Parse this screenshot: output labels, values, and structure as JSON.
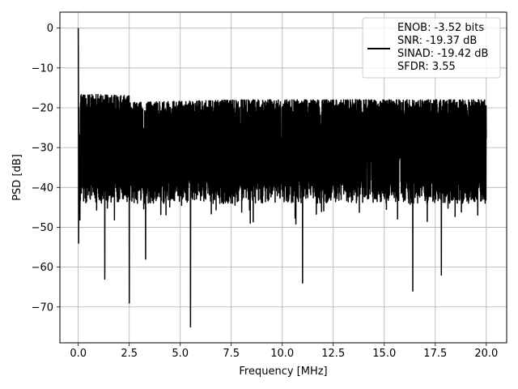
{
  "chart_data": {
    "type": "line",
    "xlabel": "Frequency [MHz]",
    "ylabel": "PSD [dB]",
    "xlim": [
      -0.9,
      21.0
    ],
    "ylim": [
      -79,
      4
    ],
    "xticks": [
      0.0,
      2.5,
      5.0,
      7.5,
      10.0,
      12.5,
      15.0,
      17.5,
      20.0
    ],
    "xtick_labels": [
      "0.0",
      "2.5",
      "5.0",
      "7.5",
      "10.0",
      "12.5",
      "15.0",
      "17.5",
      "20.0"
    ],
    "yticks": [
      0,
      -10,
      -20,
      -30,
      -40,
      -50,
      -60,
      -70
    ],
    "ytick_labels": [
      "0",
      "−10",
      "−20",
      "−30",
      "−40",
      "−50",
      "−60",
      "−70"
    ],
    "grid": true,
    "legend_position": "top-right",
    "series": [
      {
        "name": "ENOB: -3.52 bits\nSNR: -19.37 dB\nSINAD: -19.42 dB\nSFDR: 3.55",
        "color": "#000000",
        "x_range": [
          0,
          20
        ],
        "peak": {
          "x": 0.0,
          "y": 0
        },
        "noise_floor_median": -29,
        "upper_envelope": -18,
        "lower_envelope": -42,
        "dips": [
          {
            "x": 0.02,
            "y": -54
          },
          {
            "x": 1.3,
            "y": -63
          },
          {
            "x": 2.5,
            "y": -69
          },
          {
            "x": 3.3,
            "y": -58
          },
          {
            "x": 5.5,
            "y": -75
          },
          {
            "x": 11.0,
            "y": -64
          },
          {
            "x": 16.4,
            "y": -66
          },
          {
            "x": 17.8,
            "y": -62
          }
        ]
      }
    ]
  },
  "legend": {
    "lines": [
      "ENOB: -3.52 bits",
      "SNR: -19.37 dB",
      "SINAD: -19.42 dB",
      "SFDR: 3.55"
    ],
    "line_color": "#000000"
  }
}
